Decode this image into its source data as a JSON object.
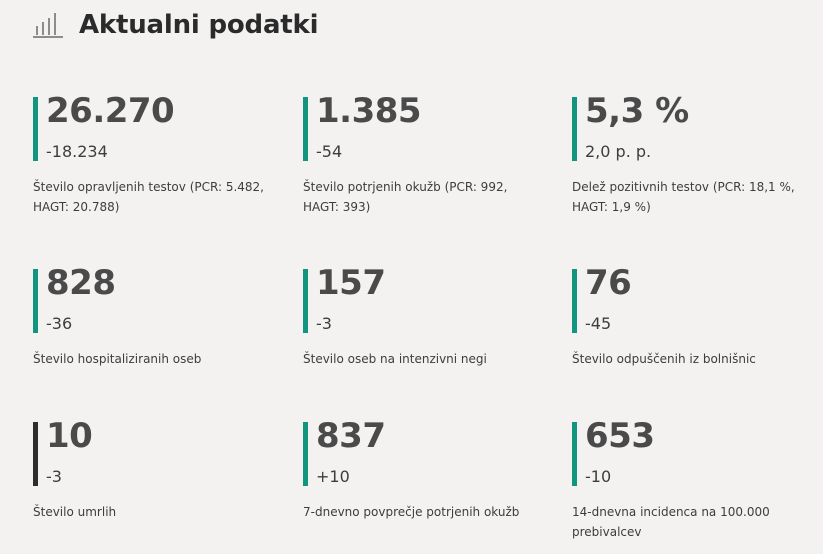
{
  "header": {
    "icon": "bar-chart-icon",
    "title": "Aktualni podatki"
  },
  "colors": {
    "accent": "#12957f",
    "dark_accent": "#2d2d2d",
    "background": "#f3f2f1"
  },
  "stats": [
    {
      "value": "26.270",
      "change": "-18.234",
      "label": "Število opravljenih testov (PCR: 5.482, HAGT: 20.788)"
    },
    {
      "value": "1.385",
      "change": "-54",
      "label": "Število potrjenih okužb (PCR: 992, HAGT: 393)"
    },
    {
      "value": "5,3 %",
      "change": "2,0 p. p.",
      "label": "Delež pozitivnih testov (PCR: 18,1 %, HAGT: 1,9 %)"
    },
    {
      "value": "828",
      "change": "-36",
      "label": "Število hospitaliziranih oseb"
    },
    {
      "value": "157",
      "change": "-3",
      "label": "Število oseb na intenzivni negi"
    },
    {
      "value": "76",
      "change": "-45",
      "label": "Število odpuščenih iz bolnišnic"
    },
    {
      "value": "10",
      "change": "-3",
      "label": "Število umrlih"
    },
    {
      "value": "837",
      "change": "+10",
      "label": "7-dnevno povprečje potrjenih okužb"
    },
    {
      "value": "653",
      "change": "-10",
      "label": "14-dnevna incidenca na 100.000 prebivalcev"
    }
  ]
}
